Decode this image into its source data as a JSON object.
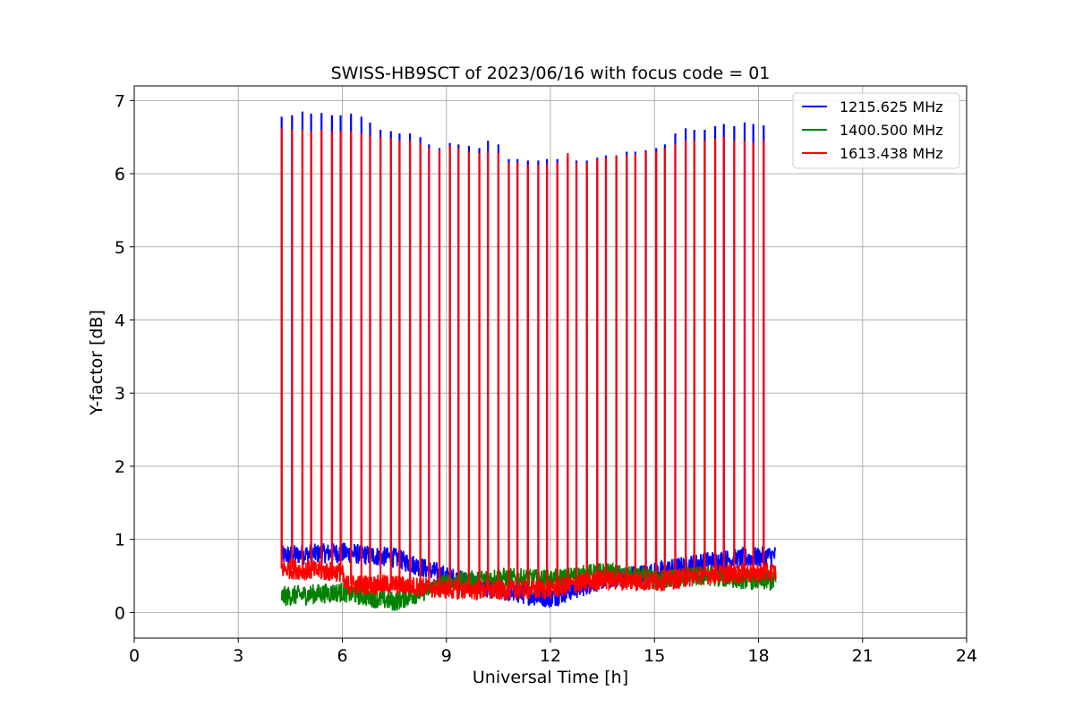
{
  "chart_data": {
    "type": "line",
    "title": "SWISS-HB9SCT of 2023/06/16 with focus code = 01",
    "xlabel": "Universal Time [h]",
    "ylabel": "Y-factor [dB]",
    "xlim": [
      0,
      24
    ],
    "ylim": [
      -0.35,
      7.2
    ],
    "xticks": [
      0,
      3,
      6,
      9,
      12,
      15,
      18,
      21,
      24
    ],
    "yticks": [
      0,
      1,
      2,
      3,
      4,
      5,
      6,
      7
    ],
    "grid": true,
    "legend_position": "top-right",
    "series": [
      {
        "name": "1215.625 MHz",
        "color": "#0000ff",
        "baseline": [
          [
            4.25,
            0.78
          ],
          [
            6.0,
            0.82
          ],
          [
            7.5,
            0.75
          ],
          [
            9.0,
            0.5
          ],
          [
            10.5,
            0.3
          ],
          [
            12.0,
            0.2
          ],
          [
            13.5,
            0.45
          ],
          [
            15.0,
            0.55
          ],
          [
            16.5,
            0.7
          ],
          [
            18.5,
            0.78
          ]
        ],
        "spike_times": [
          4.25,
          4.55,
          4.85,
          5.1,
          5.4,
          5.7,
          5.95,
          6.25,
          6.55,
          6.8,
          7.1,
          7.4,
          7.65,
          7.95,
          8.25,
          8.5,
          8.8,
          9.1,
          9.35,
          9.65,
          9.95,
          10.2,
          10.5,
          10.8,
          11.05,
          11.35,
          11.65,
          11.9,
          12.2,
          12.5,
          12.75,
          13.05,
          13.35,
          13.6,
          13.9,
          14.2,
          14.45,
          14.75,
          15.05,
          15.3,
          15.6,
          15.9,
          16.15,
          16.45,
          16.75,
          17.0,
          17.3,
          17.6,
          17.85,
          18.15
        ],
        "spike_peaks": [
          6.78,
          6.8,
          6.85,
          6.82,
          6.83,
          6.8,
          6.8,
          6.82,
          6.78,
          6.7,
          6.6,
          6.58,
          6.55,
          6.55,
          6.5,
          6.4,
          6.35,
          6.42,
          6.4,
          6.38,
          6.35,
          6.45,
          6.4,
          6.2,
          6.2,
          6.18,
          6.18,
          6.2,
          6.2,
          6.25,
          6.18,
          6.18,
          6.22,
          6.25,
          6.25,
          6.3,
          6.3,
          6.32,
          6.35,
          6.4,
          6.55,
          6.62,
          6.6,
          6.6,
          6.65,
          6.68,
          6.65,
          6.7,
          6.68,
          6.66
        ]
      },
      {
        "name": "1400.500 MHz",
        "color": "#008000",
        "baseline": [
          [
            4.25,
            0.22
          ],
          [
            6.0,
            0.28
          ],
          [
            7.5,
            0.15
          ],
          [
            9.0,
            0.4
          ],
          [
            10.5,
            0.48
          ],
          [
            12.0,
            0.45
          ],
          [
            13.5,
            0.55
          ],
          [
            15.0,
            0.45
          ],
          [
            16.5,
            0.5
          ],
          [
            18.5,
            0.42
          ]
        ],
        "spike_times": [],
        "spike_peaks": []
      },
      {
        "name": "1613.438 MHz",
        "color": "#ff0000",
        "baseline": [
          [
            4.25,
            0.6
          ],
          [
            6.0,
            0.55
          ],
          [
            6.05,
            0.38
          ],
          [
            7.5,
            0.38
          ],
          [
            9.0,
            0.32
          ],
          [
            10.5,
            0.3
          ],
          [
            12.0,
            0.32
          ],
          [
            13.5,
            0.45
          ],
          [
            15.0,
            0.42
          ],
          [
            16.5,
            0.52
          ],
          [
            18.5,
            0.55
          ]
        ],
        "spike_times": [
          4.25,
          4.55,
          4.85,
          5.1,
          5.4,
          5.7,
          5.95,
          6.25,
          6.55,
          6.8,
          7.1,
          7.4,
          7.65,
          7.95,
          8.25,
          8.5,
          8.8,
          9.1,
          9.35,
          9.65,
          9.95,
          10.2,
          10.5,
          10.8,
          11.05,
          11.35,
          11.65,
          11.9,
          12.2,
          12.5,
          12.75,
          13.05,
          13.35,
          13.6,
          13.9,
          14.2,
          14.45,
          14.75,
          15.05,
          15.3,
          15.6,
          15.9,
          16.15,
          16.45,
          16.75,
          17.0,
          17.3,
          17.6,
          17.85,
          18.15
        ],
        "spike_peaks": [
          6.62,
          6.6,
          6.6,
          6.58,
          6.6,
          6.58,
          6.58,
          6.58,
          6.55,
          6.52,
          6.5,
          6.48,
          6.45,
          6.45,
          6.42,
          6.35,
          6.33,
          6.38,
          6.35,
          6.3,
          6.28,
          6.3,
          6.28,
          6.15,
          6.15,
          6.12,
          6.12,
          6.13,
          6.15,
          6.28,
          6.15,
          6.15,
          6.2,
          6.22,
          6.25,
          6.25,
          6.27,
          6.3,
          6.3,
          6.35,
          6.4,
          6.45,
          6.45,
          6.45,
          6.48,
          6.5,
          6.45,
          6.45,
          6.42,
          6.45
        ]
      }
    ]
  }
}
